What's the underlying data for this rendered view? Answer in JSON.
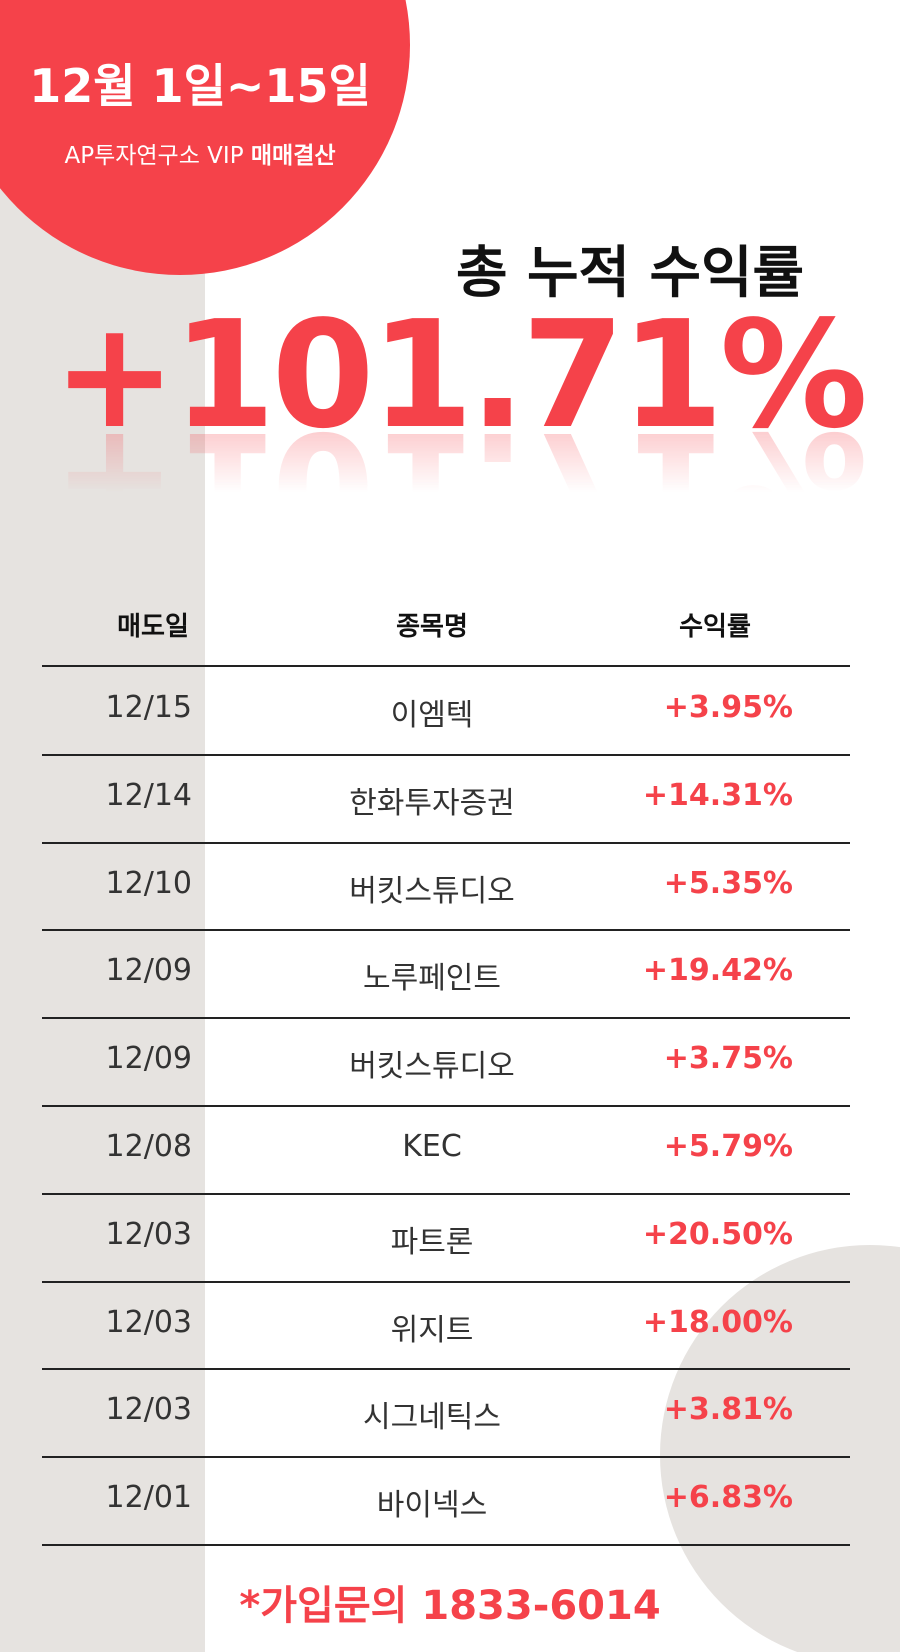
{
  "header": {
    "period": "12월 1일~15일",
    "org": "AP투자연구소 VIP",
    "label": "매매결산"
  },
  "summary": {
    "title": "총 누적 수익률",
    "total": "+101.71%"
  },
  "table": {
    "columns": [
      "매도일",
      "종목명",
      "수익률"
    ],
    "rows": [
      [
        "12/15",
        "이엠텍",
        "+3.95%"
      ],
      [
        "12/14",
        "한화투자증권",
        "+14.31%"
      ],
      [
        "12/10",
        "버킷스튜디오",
        "+5.35%"
      ],
      [
        "12/09",
        "노루페인트",
        "+19.42%"
      ],
      [
        "12/09",
        "버킷스튜디오",
        "+3.75%"
      ],
      [
        "12/08",
        "KEC",
        "+5.79%"
      ],
      [
        "12/03",
        "파트론",
        "+20.50%"
      ],
      [
        "12/03",
        "위지트",
        "+18.00%"
      ],
      [
        "12/03",
        "시그네틱스",
        "+3.81%"
      ],
      [
        "12/01",
        "바이넥스",
        "+6.83%"
      ]
    ]
  },
  "footer": {
    "contact": "*가입문의 1833-6014"
  }
}
